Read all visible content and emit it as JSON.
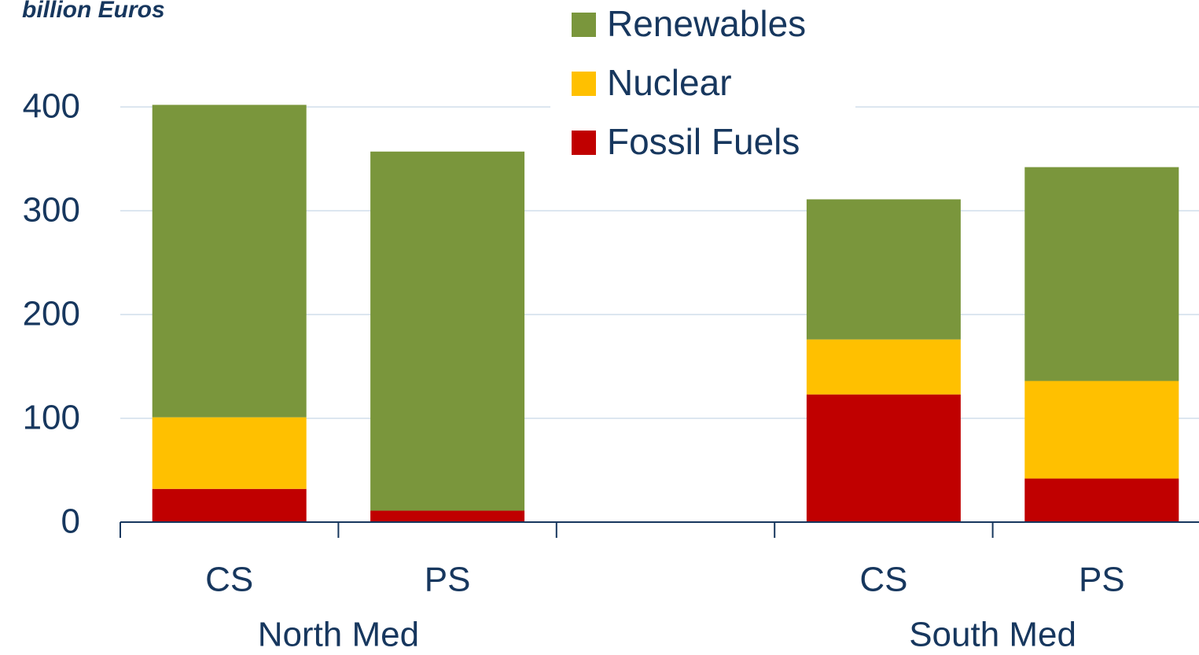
{
  "chart_data": {
    "type": "stacked_bar",
    "title": "billion Euros",
    "categories": [
      "CS",
      "PS",
      null,
      "CS",
      "PS"
    ],
    "groups": [
      "North Med",
      "South Med"
    ],
    "series": [
      {
        "name": "Fossil Fuels",
        "color": "#c00000",
        "values": [
          32,
          11,
          null,
          123,
          42
        ]
      },
      {
        "name": "Nuclear",
        "color": "#ffc000",
        "values": [
          69,
          0,
          null,
          53,
          94
        ]
      },
      {
        "name": "Renewables",
        "color": "#7a963c",
        "values": [
          301,
          346,
          null,
          135,
          206
        ]
      }
    ],
    "ylim": [
      0,
      400
    ],
    "yticks": [
      0,
      100,
      200,
      300,
      400
    ],
    "grid": true,
    "legend": "top"
  }
}
